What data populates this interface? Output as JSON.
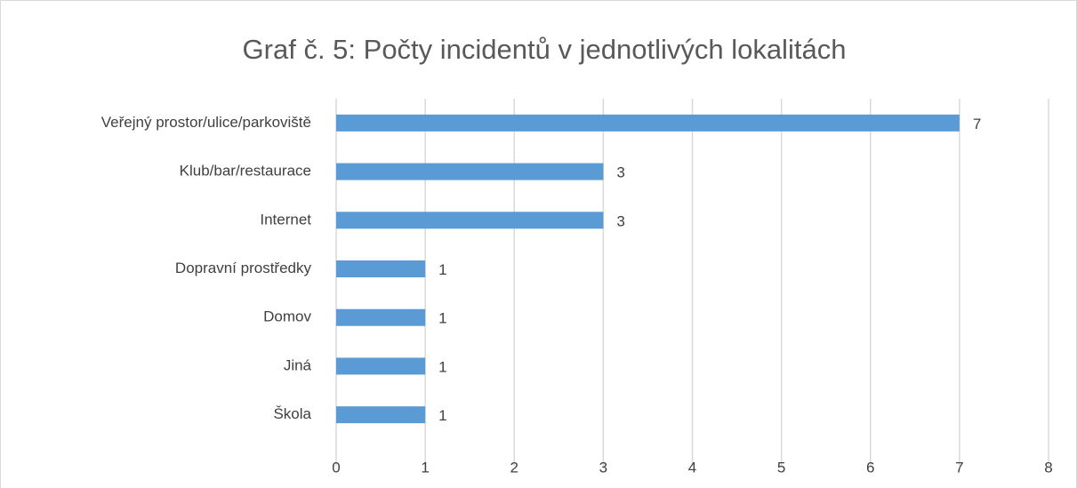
{
  "chart_data": {
    "type": "hbar",
    "title": "Graf č. 5: Počty incidentů v jednotlivých lokalitách",
    "categories": [
      "Veřejný prostor/ulice/parkoviště",
      "Klub/bar/restaurace",
      "Internet",
      "Dopravní prostředky",
      "Domov",
      "Jiná",
      "Škola"
    ],
    "values": [
      7,
      3,
      3,
      1,
      1,
      1,
      1
    ],
    "color": "#5b9bd5",
    "xlim": [
      0,
      8
    ],
    "xticks": [
      0,
      1,
      2,
      3,
      4,
      5,
      6,
      7,
      8
    ],
    "grid": true
  }
}
